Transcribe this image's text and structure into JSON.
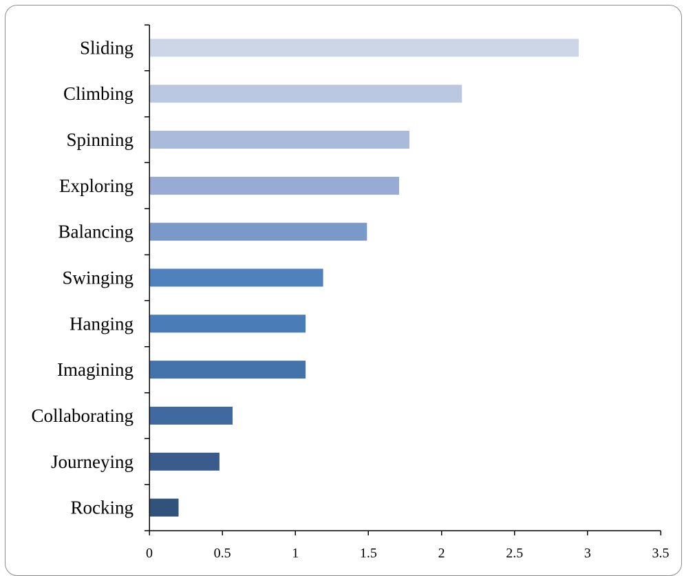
{
  "chart_data": {
    "type": "bar",
    "orientation": "horizontal",
    "title": "",
    "xlabel": "",
    "ylabel": "",
    "categories": [
      "Sliding",
      "Climbing",
      "Spinning",
      "Exploring",
      "Balancing",
      "Swinging",
      "Hanging",
      "Imagining",
      "Collaborating",
      "Journeying",
      "Rocking"
    ],
    "values": [
      2.94,
      2.14,
      1.78,
      1.71,
      1.49,
      1.19,
      1.07,
      1.07,
      0.57,
      0.48,
      0.2
    ],
    "bar_colors": [
      "#cdd6e6",
      "#bac8e2",
      "#a9badb",
      "#97abd4",
      "#7a99c9",
      "#4f81bd",
      "#4a7cb8",
      "#4473ab",
      "#3f69a0",
      "#395c8c",
      "#31527a"
    ],
    "xlim": [
      0,
      3.5
    ],
    "xticks": [
      0,
      0.5,
      1,
      1.5,
      2,
      2.5,
      3,
      3.5
    ],
    "xtick_labels": [
      "0",
      "0.5",
      "1",
      "1.5",
      "2",
      "2.5",
      "3",
      "3.5"
    ],
    "grid": false,
    "legend": "none"
  }
}
